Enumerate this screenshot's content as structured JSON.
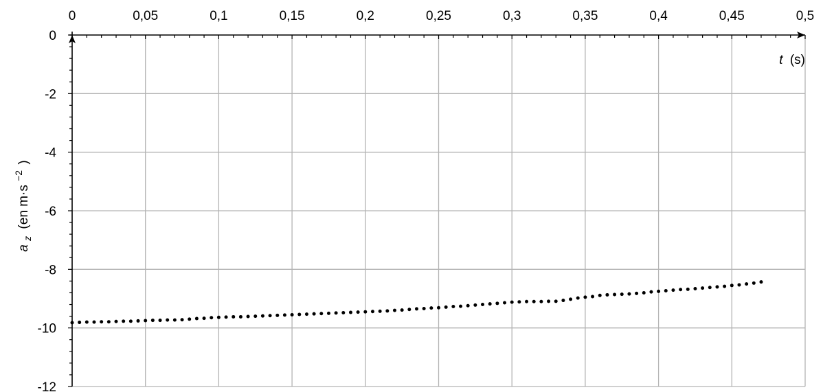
{
  "chart_data": {
    "type": "scatter",
    "title": "",
    "xlabel": {
      "symbol": "t",
      "unit": "(s)"
    },
    "ylabel": {
      "symbol": "a",
      "subscript": "z",
      "unit": "(en m·s",
      "unit_sup": "−2",
      "unit_end": ")"
    },
    "xlim": [
      0,
      0.5
    ],
    "ylim": [
      -12,
      0
    ],
    "x_ticks": [
      0,
      0.05,
      0.1,
      0.15,
      0.2,
      0.25,
      0.3,
      0.35,
      0.4,
      0.45,
      0.5
    ],
    "x_tick_labels": [
      "0",
      "0,05",
      "0,1",
      "0,15",
      "0,2",
      "0,25",
      "0,3",
      "0,35",
      "0,4",
      "0,45",
      "0,5"
    ],
    "y_ticks": [
      0,
      -2,
      -4,
      -6,
      -8,
      -10,
      -12
    ],
    "y_tick_labels": [
      "0",
      "-2",
      "-4",
      "-6",
      "-8",
      "-10",
      "-12"
    ],
    "grid": true,
    "x_axis_position": "top",
    "marker_color": "#000000",
    "grid_color": "#b3b3b3",
    "series": [
      {
        "x": [
          0.0,
          0.005,
          0.01,
          0.015,
          0.02,
          0.025,
          0.03,
          0.035,
          0.04,
          0.045,
          0.05,
          0.055,
          0.06,
          0.065,
          0.07,
          0.075,
          0.08,
          0.085,
          0.09,
          0.095,
          0.1,
          0.105,
          0.11,
          0.115,
          0.12,
          0.125,
          0.13,
          0.135,
          0.14,
          0.145,
          0.15,
          0.155,
          0.16,
          0.165,
          0.17,
          0.175,
          0.18,
          0.185,
          0.19,
          0.195,
          0.2,
          0.205,
          0.21,
          0.215,
          0.22,
          0.225,
          0.23,
          0.235,
          0.24,
          0.245,
          0.25,
          0.255,
          0.26,
          0.265,
          0.27,
          0.275,
          0.28,
          0.285,
          0.29,
          0.295,
          0.3,
          0.305,
          0.31,
          0.315,
          0.32,
          0.325,
          0.33,
          0.335,
          0.34,
          0.345,
          0.35,
          0.355,
          0.36,
          0.365,
          0.37,
          0.375,
          0.38,
          0.385,
          0.39,
          0.395,
          0.4,
          0.405,
          0.41,
          0.415,
          0.42,
          0.425,
          0.43,
          0.435,
          0.44,
          0.445,
          0.45,
          0.455,
          0.46,
          0.465,
          0.47
        ],
        "y": [
          -9.82,
          -9.81,
          -9.8,
          -9.8,
          -9.79,
          -9.79,
          -9.78,
          -9.77,
          -9.77,
          -9.76,
          -9.75,
          -9.74,
          -9.74,
          -9.73,
          -9.73,
          -9.72,
          -9.7,
          -9.68,
          -9.67,
          -9.65,
          -9.64,
          -9.63,
          -9.62,
          -9.62,
          -9.61,
          -9.6,
          -9.59,
          -9.58,
          -9.57,
          -9.56,
          -9.55,
          -9.54,
          -9.53,
          -9.52,
          -9.51,
          -9.5,
          -9.49,
          -9.48,
          -9.47,
          -9.46,
          -9.45,
          -9.44,
          -9.43,
          -9.42,
          -9.4,
          -9.39,
          -9.37,
          -9.35,
          -9.34,
          -9.32,
          -9.31,
          -9.29,
          -9.27,
          -9.26,
          -9.24,
          -9.22,
          -9.2,
          -9.18,
          -9.16,
          -9.14,
          -9.12,
          -9.11,
          -9.1,
          -9.1,
          -9.1,
          -9.09,
          -9.09,
          -9.06,
          -9.02,
          -8.98,
          -8.95,
          -8.93,
          -8.89,
          -8.87,
          -8.86,
          -8.85,
          -8.84,
          -8.82,
          -8.8,
          -8.77,
          -8.75,
          -8.73,
          -8.71,
          -8.69,
          -8.68,
          -8.66,
          -8.64,
          -8.62,
          -8.6,
          -8.58,
          -8.55,
          -8.53,
          -8.5,
          -8.47,
          -8.43
        ]
      }
    ]
  }
}
